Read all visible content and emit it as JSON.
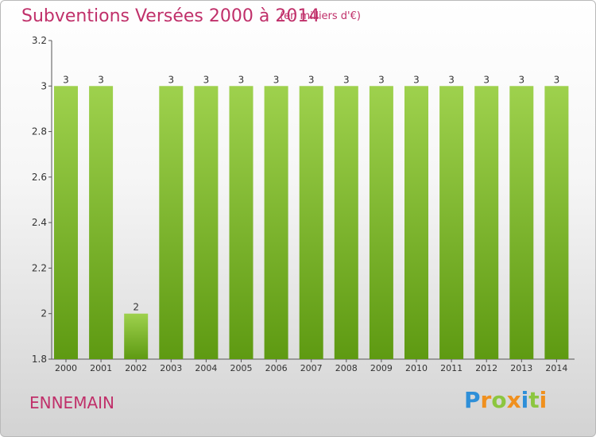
{
  "header": {
    "title": "Subventions Versées 2000 à 2014",
    "unit": "(en milliers d'€)"
  },
  "footer": {
    "commune": "ENNEMAIN",
    "brand": "Proxiti",
    "brand_letters": [
      {
        "ch": "P",
        "color": "#2e8fd8"
      },
      {
        "ch": "r",
        "color": "#f0901e"
      },
      {
        "ch": "o",
        "color": "#8cc63f"
      },
      {
        "ch": "x",
        "color": "#f0901e"
      },
      {
        "ch": "i",
        "color": "#2e8fd8"
      },
      {
        "ch": "t",
        "color": "#8cc63f"
      },
      {
        "ch": "i",
        "color": "#f0901e"
      }
    ]
  },
  "chart_data": {
    "type": "bar",
    "title": "Subventions Versées 2000 à 2014",
    "subtitle": "(en milliers d'€)",
    "categories": [
      "2000",
      "2001",
      "2002",
      "2003",
      "2004",
      "2005",
      "2006",
      "2007",
      "2008",
      "2009",
      "2010",
      "2011",
      "2012",
      "2013",
      "2014"
    ],
    "values": [
      3,
      3,
      2,
      3,
      3,
      3,
      3,
      3,
      3,
      3,
      3,
      3,
      3,
      3,
      3
    ],
    "data_labels": [
      "3",
      "3",
      "2",
      "3",
      "3",
      "3",
      "3",
      "3",
      "3",
      "3",
      "3",
      "3",
      "3",
      "3",
      "3"
    ],
    "yticks": [
      "1.8",
      "2",
      "2.2",
      "2.4",
      "2.6",
      "2.8",
      "3",
      "3.2"
    ],
    "ylim": [
      1.8,
      3.2
    ],
    "xlabel": "",
    "ylabel": "",
    "grid": false,
    "bar_color": "#8cc63f"
  }
}
